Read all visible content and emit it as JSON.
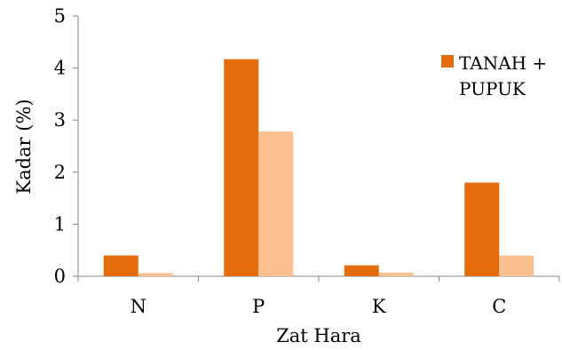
{
  "chart_data": {
    "type": "bar",
    "categories": [
      "N",
      "P",
      "K",
      "C"
    ],
    "series": [
      {
        "name": "TANAH + PUPUK",
        "color": "#E46C0A",
        "values": [
          0.4,
          4.17,
          0.21,
          1.8
        ]
      },
      {
        "color": "#FAC090",
        "values": [
          0.06,
          2.78,
          0.07,
          0.4
        ]
      }
    ],
    "xlabel": "Zat Hara",
    "ylabel": "Kadar (%)",
    "ylim": [
      0,
      5
    ],
    "yticks": [
      "0",
      "1",
      "2",
      "3",
      "4",
      "5"
    ],
    "grid": false,
    "legend": {
      "position": "top-right",
      "lines": [
        "TANAH +",
        "PUPUK"
      ]
    }
  }
}
